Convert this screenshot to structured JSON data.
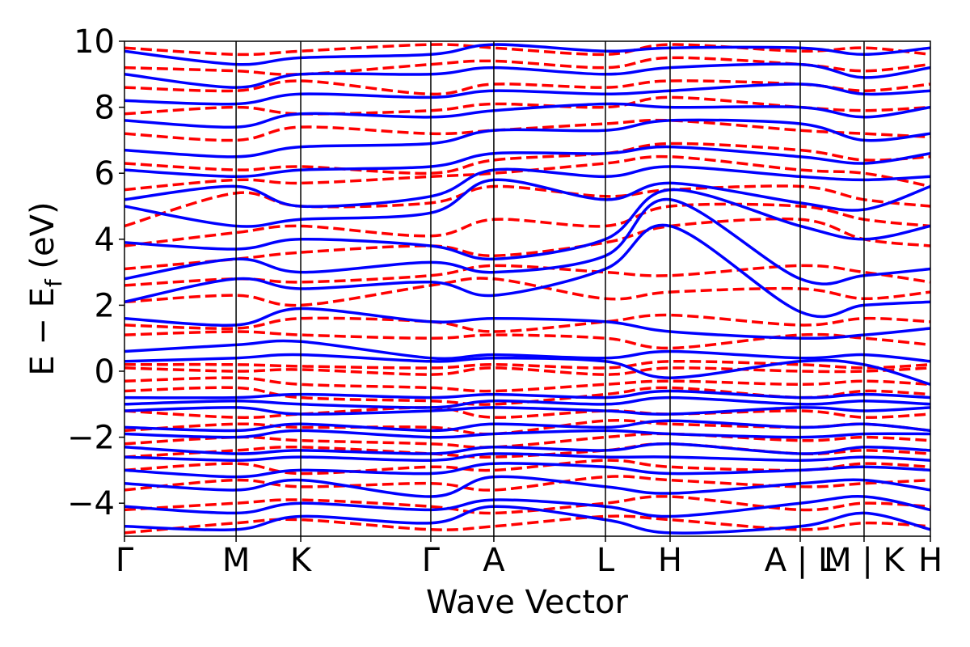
{
  "chart_data": {
    "type": "line",
    "xlabel": "Wave Vector",
    "ylabel_main": "E − E",
    "ylabel_sub": "f",
    "ylabel_unit": " (eV)",
    "ylim": [
      -5,
      10
    ],
    "yticks": [
      -4,
      -2,
      0,
      2,
      4,
      6,
      8,
      10
    ],
    "ytick_labels": [
      "−4",
      "−2",
      "0",
      "2",
      "4",
      "6",
      "8",
      "10"
    ],
    "grid": false,
    "kpath": {
      "x_range": [
        0,
        1
      ],
      "labels": [
        {
          "x": 0.0,
          "text": "Γ"
        },
        {
          "x": 0.1385,
          "text": "M"
        },
        {
          "x": 0.2187,
          "text": "K"
        },
        {
          "x": 0.3801,
          "text": "Γ"
        },
        {
          "x": 0.4583,
          "text": "A"
        },
        {
          "x": 0.5968,
          "text": "L"
        },
        {
          "x": 0.677,
          "text": "H"
        },
        {
          "x": 0.8385,
          "text": "A | L"
        },
        {
          "x": 0.9177,
          "text": "M | K"
        },
        {
          "x": 1.0,
          "text": "H"
        }
      ],
      "segment_boundaries": [
        0.1385,
        0.2187,
        0.3801,
        0.4583,
        0.5968,
        0.677,
        0.8385,
        0.9177
      ]
    },
    "series": [
      {
        "style": "dashed",
        "color": "#ff0000",
        "band_energies_at_high_symmetry_points": [
          [
            -4.9,
            -4.6,
            -4.5,
            -4.8,
            -4.7,
            -4.4,
            -4.5,
            -4.8,
            -4.6,
            -4.7
          ],
          [
            -4.2,
            -4.0,
            -3.9,
            -4.1,
            -4.3,
            -4.0,
            -3.8,
            -4.2,
            -4.0,
            -4.1
          ],
          [
            -3.6,
            -3.3,
            -3.5,
            -3.4,
            -3.6,
            -3.2,
            -3.3,
            -3.5,
            -3.4,
            -3.3
          ],
          [
            -3.0,
            -2.8,
            -3.1,
            -2.9,
            -3.0,
            -2.7,
            -2.9,
            -3.0,
            -2.8,
            -2.9
          ],
          [
            -2.6,
            -2.4,
            -2.3,
            -2.5,
            -2.6,
            -2.4,
            -2.2,
            -2.5,
            -2.4,
            -2.5
          ],
          [
            -2.2,
            -2.0,
            -2.1,
            -2.2,
            -2.3,
            -2.0,
            -1.9,
            -2.1,
            -2.0,
            -2.1
          ],
          [
            -1.8,
            -1.6,
            -1.7,
            -1.7,
            -1.9,
            -1.5,
            -1.6,
            -1.7,
            -1.6,
            -1.8
          ],
          [
            -1.2,
            -1.4,
            -1.3,
            -1.1,
            -1.4,
            -1.2,
            -1.3,
            -1.2,
            -1.4,
            -1.3
          ],
          [
            -0.6,
            -0.5,
            -0.8,
            -0.9,
            -1.0,
            -0.7,
            -0.5,
            -0.8,
            -0.6,
            -0.7
          ],
          [
            -0.3,
            -0.2,
            -0.4,
            -0.5,
            -0.6,
            -0.4,
            -0.3,
            -0.4,
            -0.3,
            -0.4
          ],
          [
            0.1,
            0.0,
            0.05,
            -0.1,
            0.1,
            -0.1,
            0.1,
            0.0,
            0.0,
            0.1
          ],
          [
            0.2,
            0.2,
            0.15,
            0.1,
            0.2,
            0.1,
            0.3,
            0.2,
            0.1,
            0.2
          ],
          [
            1.1,
            1.2,
            1.1,
            1.0,
            1.1,
            1.0,
            0.7,
            1.1,
            1.0,
            0.8
          ],
          [
            1.4,
            1.3,
            1.6,
            1.5,
            1.2,
            1.5,
            1.7,
            1.4,
            1.6,
            1.5
          ],
          [
            2.1,
            2.3,
            2.0,
            2.6,
            2.8,
            2.2,
            2.4,
            2.5,
            2.2,
            2.4
          ],
          [
            2.6,
            2.8,
            2.7,
            2.9,
            3.2,
            3.0,
            2.9,
            3.2,
            3.0,
            2.7
          ],
          [
            3.1,
            3.4,
            3.6,
            3.8,
            3.5,
            3.9,
            4.4,
            4.6,
            4.0,
            3.8
          ],
          [
            3.8,
            4.2,
            4.4,
            4.1,
            4.6,
            4.4,
            5.0,
            5.0,
            4.6,
            4.4
          ],
          [
            4.4,
            5.4,
            5.0,
            5.1,
            5.6,
            5.3,
            5.5,
            5.6,
            5.2,
            5.0
          ],
          [
            5.5,
            5.8,
            5.7,
            5.9,
            6.0,
            6.3,
            6.5,
            6.1,
            6.0,
            5.6
          ],
          [
            6.3,
            6.1,
            6.2,
            6.0,
            6.4,
            6.6,
            6.9,
            6.7,
            6.4,
            6.5
          ],
          [
            7.2,
            7.0,
            7.4,
            7.2,
            7.3,
            7.5,
            7.6,
            7.3,
            7.2,
            7.1
          ],
          [
            7.8,
            8.0,
            7.8,
            7.9,
            8.1,
            8.0,
            8.3,
            8.0,
            7.9,
            8.0
          ],
          [
            8.6,
            8.5,
            8.8,
            8.4,
            8.7,
            8.6,
            8.8,
            8.7,
            8.5,
            8.7
          ],
          [
            9.2,
            9.1,
            9.0,
            9.3,
            9.4,
            9.2,
            9.5,
            9.3,
            9.1,
            9.3
          ],
          [
            9.8,
            9.6,
            9.7,
            9.9,
            9.8,
            9.6,
            9.9,
            9.7,
            9.8,
            9.6
          ]
        ]
      },
      {
        "style": "solid",
        "color": "#0000ff",
        "band_energies_at_high_symmetry_points": [
          [
            -4.7,
            -4.8,
            -4.4,
            -4.6,
            -4.1,
            -4.5,
            -4.9,
            -4.7,
            -4.3,
            -4.8
          ],
          [
            -4.1,
            -4.3,
            -4.0,
            -4.2,
            -3.9,
            -4.1,
            -4.4,
            -4.0,
            -3.8,
            -4.2
          ],
          [
            -3.4,
            -3.6,
            -3.3,
            -3.8,
            -3.2,
            -3.5,
            -3.7,
            -3.4,
            -3.3,
            -3.6
          ],
          [
            -3.0,
            -3.2,
            -3.0,
            -3.1,
            -2.8,
            -2.9,
            -3.1,
            -3.0,
            -2.9,
            -3.0
          ],
          [
            -2.6,
            -2.7,
            -2.6,
            -2.7,
            -2.5,
            -2.6,
            -2.6,
            -2.7,
            -2.6,
            -2.7
          ],
          [
            -2.3,
            -2.5,
            -2.4,
            -2.5,
            -2.3,
            -2.4,
            -2.2,
            -2.5,
            -2.3,
            -2.4
          ],
          [
            -1.9,
            -2.0,
            -1.8,
            -2.0,
            -1.9,
            -1.8,
            -1.9,
            -2.0,
            -1.9,
            -1.9
          ],
          [
            -1.7,
            -1.8,
            -1.6,
            -1.8,
            -1.6,
            -1.7,
            -1.5,
            -1.7,
            -1.6,
            -1.8
          ],
          [
            -1.2,
            -1.1,
            -1.3,
            -1.2,
            -1.1,
            -1.2,
            -1.3,
            -1.1,
            -1.2,
            -1.1
          ],
          [
            -1.0,
            -0.9,
            -1.0,
            -1.1,
            -0.9,
            -1.0,
            -0.8,
            -1.0,
            -0.9,
            -1.0
          ],
          [
            -0.8,
            -0.8,
            -0.7,
            -0.8,
            -0.7,
            -0.8,
            -0.6,
            -0.8,
            -0.7,
            -0.8
          ],
          [
            0.3,
            0.4,
            0.5,
            0.3,
            0.4,
            0.3,
            -0.2,
            0.3,
            0.2,
            -0.4
          ],
          [
            0.6,
            0.8,
            0.9,
            0.4,
            0.5,
            0.4,
            0.6,
            0.4,
            0.5,
            0.3
          ],
          [
            1.6,
            1.4,
            1.9,
            1.5,
            1.6,
            1.5,
            1.2,
            1.0,
            1.1,
            1.3
          ],
          [
            2.1,
            2.8,
            2.5,
            2.7,
            2.3,
            3.1,
            4.4,
            1.8,
            2.0,
            2.1
          ],
          [
            2.8,
            3.4,
            3.0,
            3.3,
            3.0,
            3.5,
            5.2,
            2.8,
            2.9,
            3.1
          ],
          [
            3.9,
            3.7,
            4.0,
            3.8,
            3.4,
            4.0,
            5.5,
            4.4,
            4.0,
            4.4
          ],
          [
            5.0,
            4.4,
            4.6,
            4.8,
            5.8,
            5.2,
            5.7,
            5.1,
            4.9,
            5.6
          ],
          [
            5.2,
            5.6,
            5.0,
            5.3,
            6.1,
            5.9,
            6.2,
            5.9,
            5.8,
            5.9
          ],
          [
            6.1,
            5.9,
            6.1,
            6.2,
            6.6,
            6.6,
            6.8,
            6.5,
            6.3,
            6.6
          ],
          [
            6.7,
            6.5,
            6.8,
            6.9,
            7.3,
            7.3,
            7.6,
            7.5,
            7.0,
            7.2
          ],
          [
            7.6,
            7.4,
            7.8,
            7.7,
            7.9,
            8.1,
            8.0,
            8.0,
            7.7,
            8.0
          ],
          [
            8.2,
            8.1,
            8.4,
            8.3,
            8.5,
            8.4,
            8.5,
            8.7,
            8.4,
            8.5
          ],
          [
            9.0,
            8.6,
            9.0,
            9.0,
            9.2,
            9.0,
            9.2,
            9.3,
            8.9,
            9.2
          ],
          [
            9.7,
            9.3,
            9.5,
            9.6,
            9.9,
            9.7,
            9.8,
            9.8,
            9.6,
            9.8
          ]
        ]
      }
    ]
  }
}
